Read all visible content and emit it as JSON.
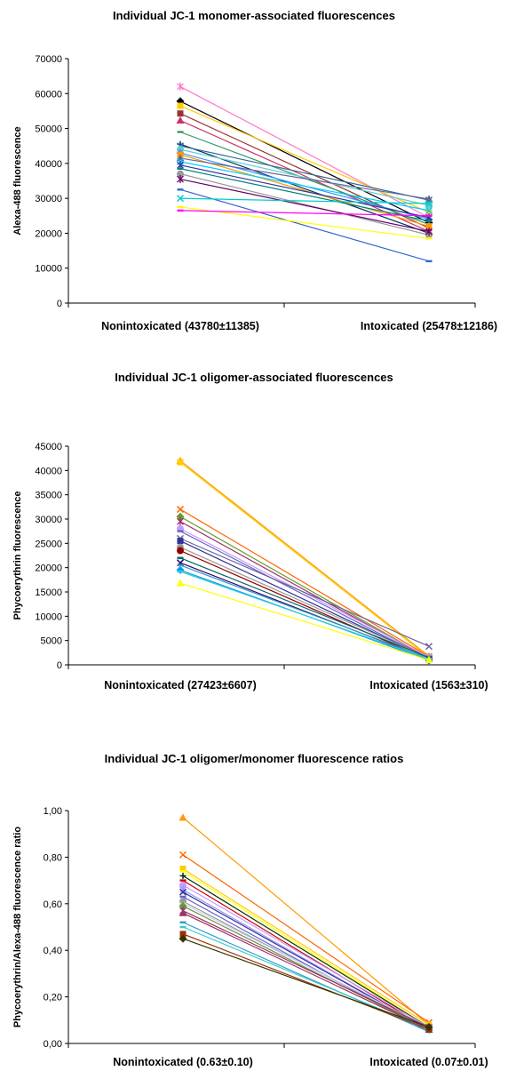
{
  "chart_data": [
    {
      "type": "line",
      "title": "Individual JC-1 monomer-associated fluorescences",
      "ylabel": "Alexa-488 fluorescence",
      "xlabel": "",
      "categories": [
        "Nonintoxicated (43780±11385)",
        "Intoxicated (25478±12186)"
      ],
      "ylim": [
        0,
        70000
      ],
      "yticks": [
        "0",
        "10000",
        "20000",
        "30000",
        "40000",
        "50000",
        "60000",
        "70000"
      ],
      "ytick_values": [
        0,
        10000,
        20000,
        30000,
        40000,
        50000,
        60000,
        70000
      ],
      "grid": false,
      "legend": "none",
      "series": [
        {
          "values": [
            62000,
            24500
          ],
          "color": "#ff77cc",
          "marker": "asterisk"
        },
        {
          "values": [
            57800,
            23000
          ],
          "color": "#000000",
          "marker": "diamond"
        },
        {
          "values": [
            56500,
            26000
          ],
          "color": "#ffcc00",
          "marker": "square"
        },
        {
          "values": [
            54300,
            21500
          ],
          "color": "#993333",
          "marker": "square"
        },
        {
          "values": [
            52300,
            20500
          ],
          "color": "#cc3366",
          "marker": "triangle"
        },
        {
          "values": [
            49000,
            22500
          ],
          "color": "#339966",
          "marker": "dash"
        },
        {
          "values": [
            45500,
            20000
          ],
          "color": "#003366",
          "marker": "plus"
        },
        {
          "values": [
            45000,
            29500
          ],
          "color": "#336699",
          "marker": "x"
        },
        {
          "values": [
            44000,
            28000
          ],
          "color": "#66cccc",
          "marker": "circle"
        },
        {
          "values": [
            43000,
            24000
          ],
          "color": "#3399ff",
          "marker": "diamond"
        },
        {
          "values": [
            42500,
            22000
          ],
          "color": "#ff9900",
          "marker": "square"
        },
        {
          "values": [
            41500,
            29800
          ],
          "color": "#666699",
          "marker": "triangle"
        },
        {
          "values": [
            40500,
            26500
          ],
          "color": "#00ccff",
          "marker": "x"
        },
        {
          "values": [
            39500,
            24500
          ],
          "color": "#333399",
          "marker": "asterisk"
        },
        {
          "values": [
            38500,
            23500
          ],
          "color": "#008080",
          "marker": "dash"
        },
        {
          "values": [
            37000,
            19500
          ],
          "color": "#999999",
          "marker": "circle"
        },
        {
          "values": [
            35500,
            20500
          ],
          "color": "#660066",
          "marker": "asterisk"
        },
        {
          "values": [
            32500,
            12000
          ],
          "color": "#3366cc",
          "marker": "dash"
        },
        {
          "values": [
            30000,
            28500
          ],
          "color": "#00cccc",
          "marker": "x"
        },
        {
          "values": [
            27500,
            18500
          ],
          "color": "#ffff00",
          "marker": "dash"
        },
        {
          "values": [
            26500,
            25000
          ],
          "color": "#ff00ff",
          "marker": "dash"
        }
      ]
    },
    {
      "type": "line",
      "title": "Individual JC-1 oligomer-associated fluorescences",
      "ylabel": "Phycoerythrin fluorescence",
      "xlabel": "",
      "categories": [
        "Nonintoxicated (27423±6607)",
        "Intoxicated (1563±310)"
      ],
      "ylim": [
        0,
        45000
      ],
      "yticks": [
        "0",
        "5000",
        "10000",
        "15000",
        "20000",
        "25000",
        "30000",
        "35000",
        "40000",
        "45000"
      ],
      "ytick_values": [
        0,
        5000,
        10000,
        15000,
        20000,
        25000,
        30000,
        35000,
        40000,
        45000
      ],
      "grid": false,
      "legend": "none",
      "series": [
        {
          "values": [
            42000,
            1800
          ],
          "color": "#ff9900",
          "marker": "triangle"
        },
        {
          "values": [
            41700,
            1500
          ],
          "color": "#ffcc00",
          "marker": "square"
        },
        {
          "values": [
            32000,
            1700
          ],
          "color": "#ff6600",
          "marker": "x"
        },
        {
          "values": [
            30500,
            1400
          ],
          "color": "#669933",
          "marker": "diamond"
        },
        {
          "values": [
            29500,
            1300
          ],
          "color": "#993366",
          "marker": "asterisk"
        },
        {
          "values": [
            28000,
            1600
          ],
          "color": "#cc99ff",
          "marker": "circle"
        },
        {
          "values": [
            27500,
            1200
          ],
          "color": "#6666cc",
          "marker": "dash"
        },
        {
          "values": [
            26000,
            3800
          ],
          "color": "#666699",
          "marker": "x"
        },
        {
          "values": [
            25500,
            1300
          ],
          "color": "#333399",
          "marker": "square"
        },
        {
          "values": [
            24200,
            1400
          ],
          "color": "#999999",
          "marker": "circle"
        },
        {
          "values": [
            23500,
            1000
          ],
          "color": "#990000",
          "marker": "circle"
        },
        {
          "values": [
            22000,
            1500
          ],
          "color": "#006666",
          "marker": "dash"
        },
        {
          "values": [
            21000,
            1100
          ],
          "color": "#330066",
          "marker": "x"
        },
        {
          "values": [
            20500,
            1300
          ],
          "color": "#3399cc",
          "marker": "dash"
        },
        {
          "values": [
            19500,
            900
          ],
          "color": "#0099ff",
          "marker": "diamond"
        },
        {
          "values": [
            19200,
            1200
          ],
          "color": "#33cccc",
          "marker": "dash"
        },
        {
          "values": [
            16800,
            1000
          ],
          "color": "#ffff00",
          "marker": "triangle"
        }
      ]
    },
    {
      "type": "line",
      "title": "Individual JC-1 oligomer/monomer fluorescence ratios",
      "ylabel": "Phycoerythrin/Alexa-488  fluorescence ratio",
      "xlabel": "",
      "categories": [
        "Nonintoxicated (0.63±0.10)",
        "Intoxicated (0.07±0.01)"
      ],
      "ylim": [
        0,
        1.0
      ],
      "yticks": [
        "0,00",
        "0,20",
        "0,40",
        "0,60",
        "0,80",
        "1,00"
      ],
      "ytick_values": [
        0,
        0.2,
        0.4,
        0.6,
        0.8,
        1.0
      ],
      "grid": false,
      "legend": "none",
      "series": [
        {
          "values": [
            0.97,
            0.08
          ],
          "color": "#ff9900",
          "marker": "triangle"
        },
        {
          "values": [
            0.81,
            0.09
          ],
          "color": "#ff6600",
          "marker": "x"
        },
        {
          "values": [
            0.75,
            0.08
          ],
          "color": "#ffcc00",
          "marker": "square"
        },
        {
          "values": [
            0.74,
            0.07
          ],
          "color": "#ffff00",
          "marker": "dash"
        },
        {
          "values": [
            0.72,
            0.07
          ],
          "color": "#003300",
          "marker": "plus"
        },
        {
          "values": [
            0.7,
            0.06
          ],
          "color": "#cc0000",
          "marker": "dash"
        },
        {
          "values": [
            0.68,
            0.07
          ],
          "color": "#cc99ff",
          "marker": "circle"
        },
        {
          "values": [
            0.66,
            0.06
          ],
          "color": "#9999ff",
          "marker": "asterisk"
        },
        {
          "values": [
            0.65,
            0.06
          ],
          "color": "#333399",
          "marker": "x"
        },
        {
          "values": [
            0.63,
            0.05
          ],
          "color": "#6666cc",
          "marker": "dash"
        },
        {
          "values": [
            0.61,
            0.06
          ],
          "color": "#999999",
          "marker": "circle"
        },
        {
          "values": [
            0.6,
            0.07
          ],
          "color": "#ccccff",
          "marker": "dash"
        },
        {
          "values": [
            0.59,
            0.06
          ],
          "color": "#669933",
          "marker": "diamond"
        },
        {
          "values": [
            0.57,
            0.07
          ],
          "color": "#993366",
          "marker": "asterisk"
        },
        {
          "values": [
            0.56,
            0.06
          ],
          "color": "#993366",
          "marker": "triangle"
        },
        {
          "values": [
            0.52,
            0.05
          ],
          "color": "#3399cc",
          "marker": "dash"
        },
        {
          "values": [
            0.5,
            0.06
          ],
          "color": "#33cccc",
          "marker": "dash"
        },
        {
          "values": [
            0.47,
            0.06
          ],
          "color": "#993300",
          "marker": "square"
        },
        {
          "values": [
            0.45,
            0.07
          ],
          "color": "#333300",
          "marker": "diamond"
        }
      ]
    }
  ]
}
